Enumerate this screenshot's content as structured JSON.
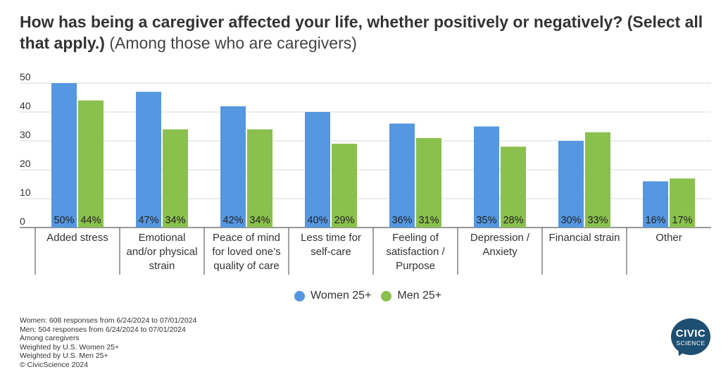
{
  "title": {
    "bold": "How has being a caregiver affected your life, whether positively or negatively? (Select all that apply.)",
    "light": "(Among those who are caregivers)"
  },
  "chart_data": {
    "type": "bar",
    "categories": [
      [
        "Added stress"
      ],
      [
        "Emotional",
        "and/or physical",
        "strain"
      ],
      [
        "Peace of mind",
        "for loved one’s",
        "quality of care"
      ],
      [
        "Less time for",
        "self-care"
      ],
      [
        "Feeling of",
        "satisfaction /",
        "Purpose"
      ],
      [
        "Depression /",
        "Anxiety"
      ],
      [
        "Financial strain"
      ],
      [
        "Other"
      ]
    ],
    "series": [
      {
        "name": "Women 25+",
        "color": "#5597e0",
        "values": [
          50,
          47,
          42,
          40,
          36,
          35,
          30,
          16
        ],
        "labels": [
          "50%",
          "47%",
          "42%",
          "40%",
          "36%",
          "35%",
          "30%",
          "16%"
        ]
      },
      {
        "name": "Men 25+",
        "color": "#8ac04d",
        "values": [
          44,
          34,
          34,
          29,
          31,
          28,
          33,
          17
        ],
        "labels": [
          "44%",
          "34%",
          "34%",
          "29%",
          "31%",
          "28%",
          "33%",
          "17%"
        ]
      }
    ],
    "ylim": [
      0,
      50
    ],
    "yticks": [
      "0",
      "10",
      "20",
      "30",
      "40",
      "50"
    ],
    "grid": true,
    "legend_position": "bottom-center"
  },
  "notes": [
    "Women: 608 responses from 6/24/2024 to 07/01/2024",
    "Men: 504 responses from 6/24/2024 to 07/01/2024",
    "Among caregivers",
    "Weighted by U.S. Women 25+",
    "Weighted by U.S. Men 25+",
    "© CivicScience 2024"
  ],
  "logo": {
    "line1": "CIVIC",
    "line2": "SCIENCE"
  }
}
